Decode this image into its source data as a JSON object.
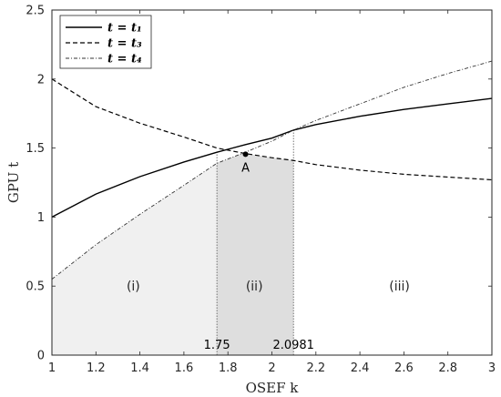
{
  "chart_data": {
    "type": "line",
    "xlabel": "OSEF k",
    "ylabel": "GPU t",
    "xlim": [
      1,
      3
    ],
    "ylim": [
      0,
      2.5
    ],
    "x_ticks": [
      "1",
      "1.2",
      "1.4",
      "1.6",
      "1.8",
      "2",
      "2.2",
      "2.4",
      "2.6",
      "2.8",
      "3"
    ],
    "y_ticks": [
      "0",
      "0.5",
      "1",
      "1.5",
      "2",
      "2.5"
    ],
    "grid": false,
    "legend_position": "top-left",
    "series": [
      {
        "name": "t = t₁",
        "style": "solid",
        "x": [
          1.0,
          1.2,
          1.4,
          1.6,
          1.75,
          1.88,
          2.0,
          2.0981,
          2.2,
          2.4,
          2.6,
          2.8,
          3.0
        ],
        "y": [
          1.0,
          1.167,
          1.293,
          1.399,
          1.47,
          1.525,
          1.572,
          1.63,
          1.67,
          1.73,
          1.78,
          1.82,
          1.86
        ]
      },
      {
        "name": "t = t₃",
        "style": "dashed",
        "x": [
          1.0,
          1.2,
          1.4,
          1.6,
          1.75,
          1.88,
          2.0,
          2.0981,
          2.2,
          2.4,
          2.6,
          2.8,
          3.0
        ],
        "y": [
          2.0,
          1.8,
          1.68,
          1.58,
          1.5,
          1.46,
          1.43,
          1.41,
          1.38,
          1.34,
          1.31,
          1.29,
          1.27
        ]
      },
      {
        "name": "t = t₄",
        "style": "dashdot",
        "x": [
          1.0,
          1.2,
          1.4,
          1.6,
          1.75,
          1.88,
          2.0,
          2.0981,
          2.2,
          2.4,
          2.6,
          2.8,
          3.0
        ],
        "y": [
          0.55,
          0.8,
          1.02,
          1.23,
          1.39,
          1.47,
          1.55,
          1.63,
          1.7,
          1.82,
          1.94,
          2.04,
          2.13
        ]
      }
    ],
    "regions": [
      {
        "label": "(i)",
        "x_range": [
          1,
          1.75
        ],
        "label_x": 1.37,
        "label_y": 0.5,
        "fill": "#f0f0f0"
      },
      {
        "label": "(ii)",
        "x_range": [
          1.75,
          2.0981
        ],
        "label_x": 1.92,
        "label_y": 0.5,
        "fill": "#dedede"
      },
      {
        "label": "(iii)",
        "x_range": [
          2.0981,
          3
        ],
        "label_x": 2.58,
        "label_y": 0.5,
        "fill": "none"
      }
    ],
    "vlines": [
      {
        "x": 1.75,
        "label": "1.75"
      },
      {
        "x": 2.0981,
        "label": "2.0981"
      }
    ],
    "point": {
      "label": "A",
      "x": 1.88,
      "y": 1.455
    }
  }
}
